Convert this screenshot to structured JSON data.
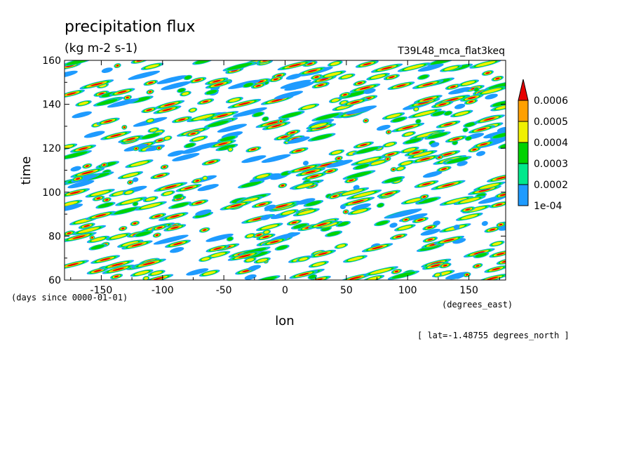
{
  "chart_data": {
    "type": "heatmap",
    "title": "precipitation flux",
    "units": "(kg m-2 s-1)",
    "run_name": "T39L48_mca_flat3keq",
    "xlabel": "lon",
    "x_units": "(degrees_east)",
    "ylabel": "time",
    "y_units": "(days since 0000-01-01)",
    "footnote": "[ lat=-1.48755 degrees_north ]",
    "xlim": [
      -180,
      180
    ],
    "ylim": [
      60,
      160
    ],
    "x_ticks": [
      -150,
      -100,
      -50,
      0,
      50,
      100,
      150
    ],
    "x_tick_labels": [
      "-150",
      "-100",
      "-50",
      "0",
      "50",
      "100",
      "150"
    ],
    "y_ticks": [
      60,
      80,
      100,
      120,
      140,
      160
    ],
    "y_tick_labels": [
      "60",
      "80",
      "100",
      "120",
      "140",
      "160"
    ],
    "colorbar": {
      "levels": [
        0.0001,
        0.0002,
        0.0003,
        0.0004,
        0.0005,
        0.0006
      ],
      "level_labels": [
        "1e-04",
        "0.0002",
        "0.0003",
        "0.0004",
        "0.0005",
        "0.0006"
      ],
      "colors": [
        "#1e9bff",
        "#00e88c",
        "#00d200",
        "#f0f000",
        "#ffa000",
        "#e60000"
      ],
      "extend": "max"
    }
  }
}
